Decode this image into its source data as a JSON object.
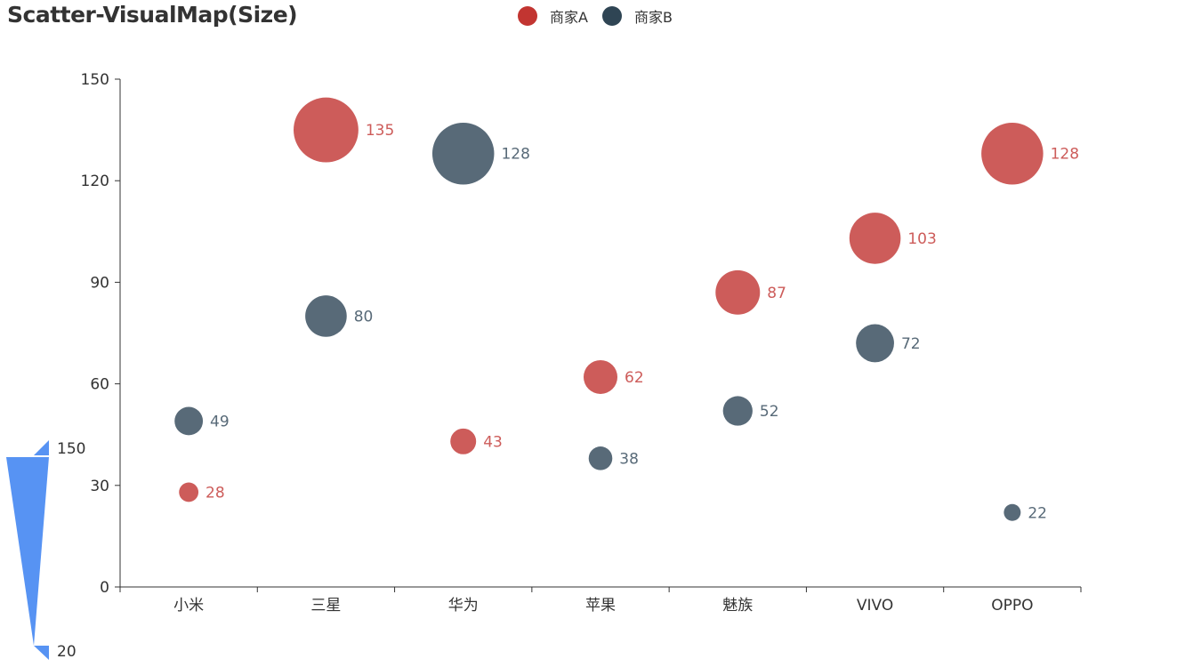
{
  "chart_data": {
    "type": "scatter",
    "title": "Scatter-VisualMap(Size)",
    "categories": [
      "小米",
      "三星",
      "华为",
      "苹果",
      "魅族",
      "VIVO",
      "OPPO"
    ],
    "series": [
      {
        "name": "商家A",
        "color": "#c23531",
        "point_color": "#cd5c5a",
        "values": [
          28,
          135,
          43,
          62,
          87,
          103,
          128
        ]
      },
      {
        "name": "商家B",
        "color": "#2f4554",
        "point_color": "#586a78",
        "values": [
          49,
          80,
          128,
          38,
          52,
          72,
          22
        ]
      }
    ],
    "ylim": [
      0,
      150
    ],
    "yticks": [
      0,
      30,
      60,
      90,
      120,
      150
    ],
    "xlabel": "",
    "ylabel": "",
    "grid": false,
    "legend_position": "top-center",
    "data_labels": true,
    "visual_map": {
      "dimension": "size",
      "max": 150,
      "min": 20,
      "max_label": "150",
      "min_label": "20",
      "color": "#5793f3"
    }
  }
}
